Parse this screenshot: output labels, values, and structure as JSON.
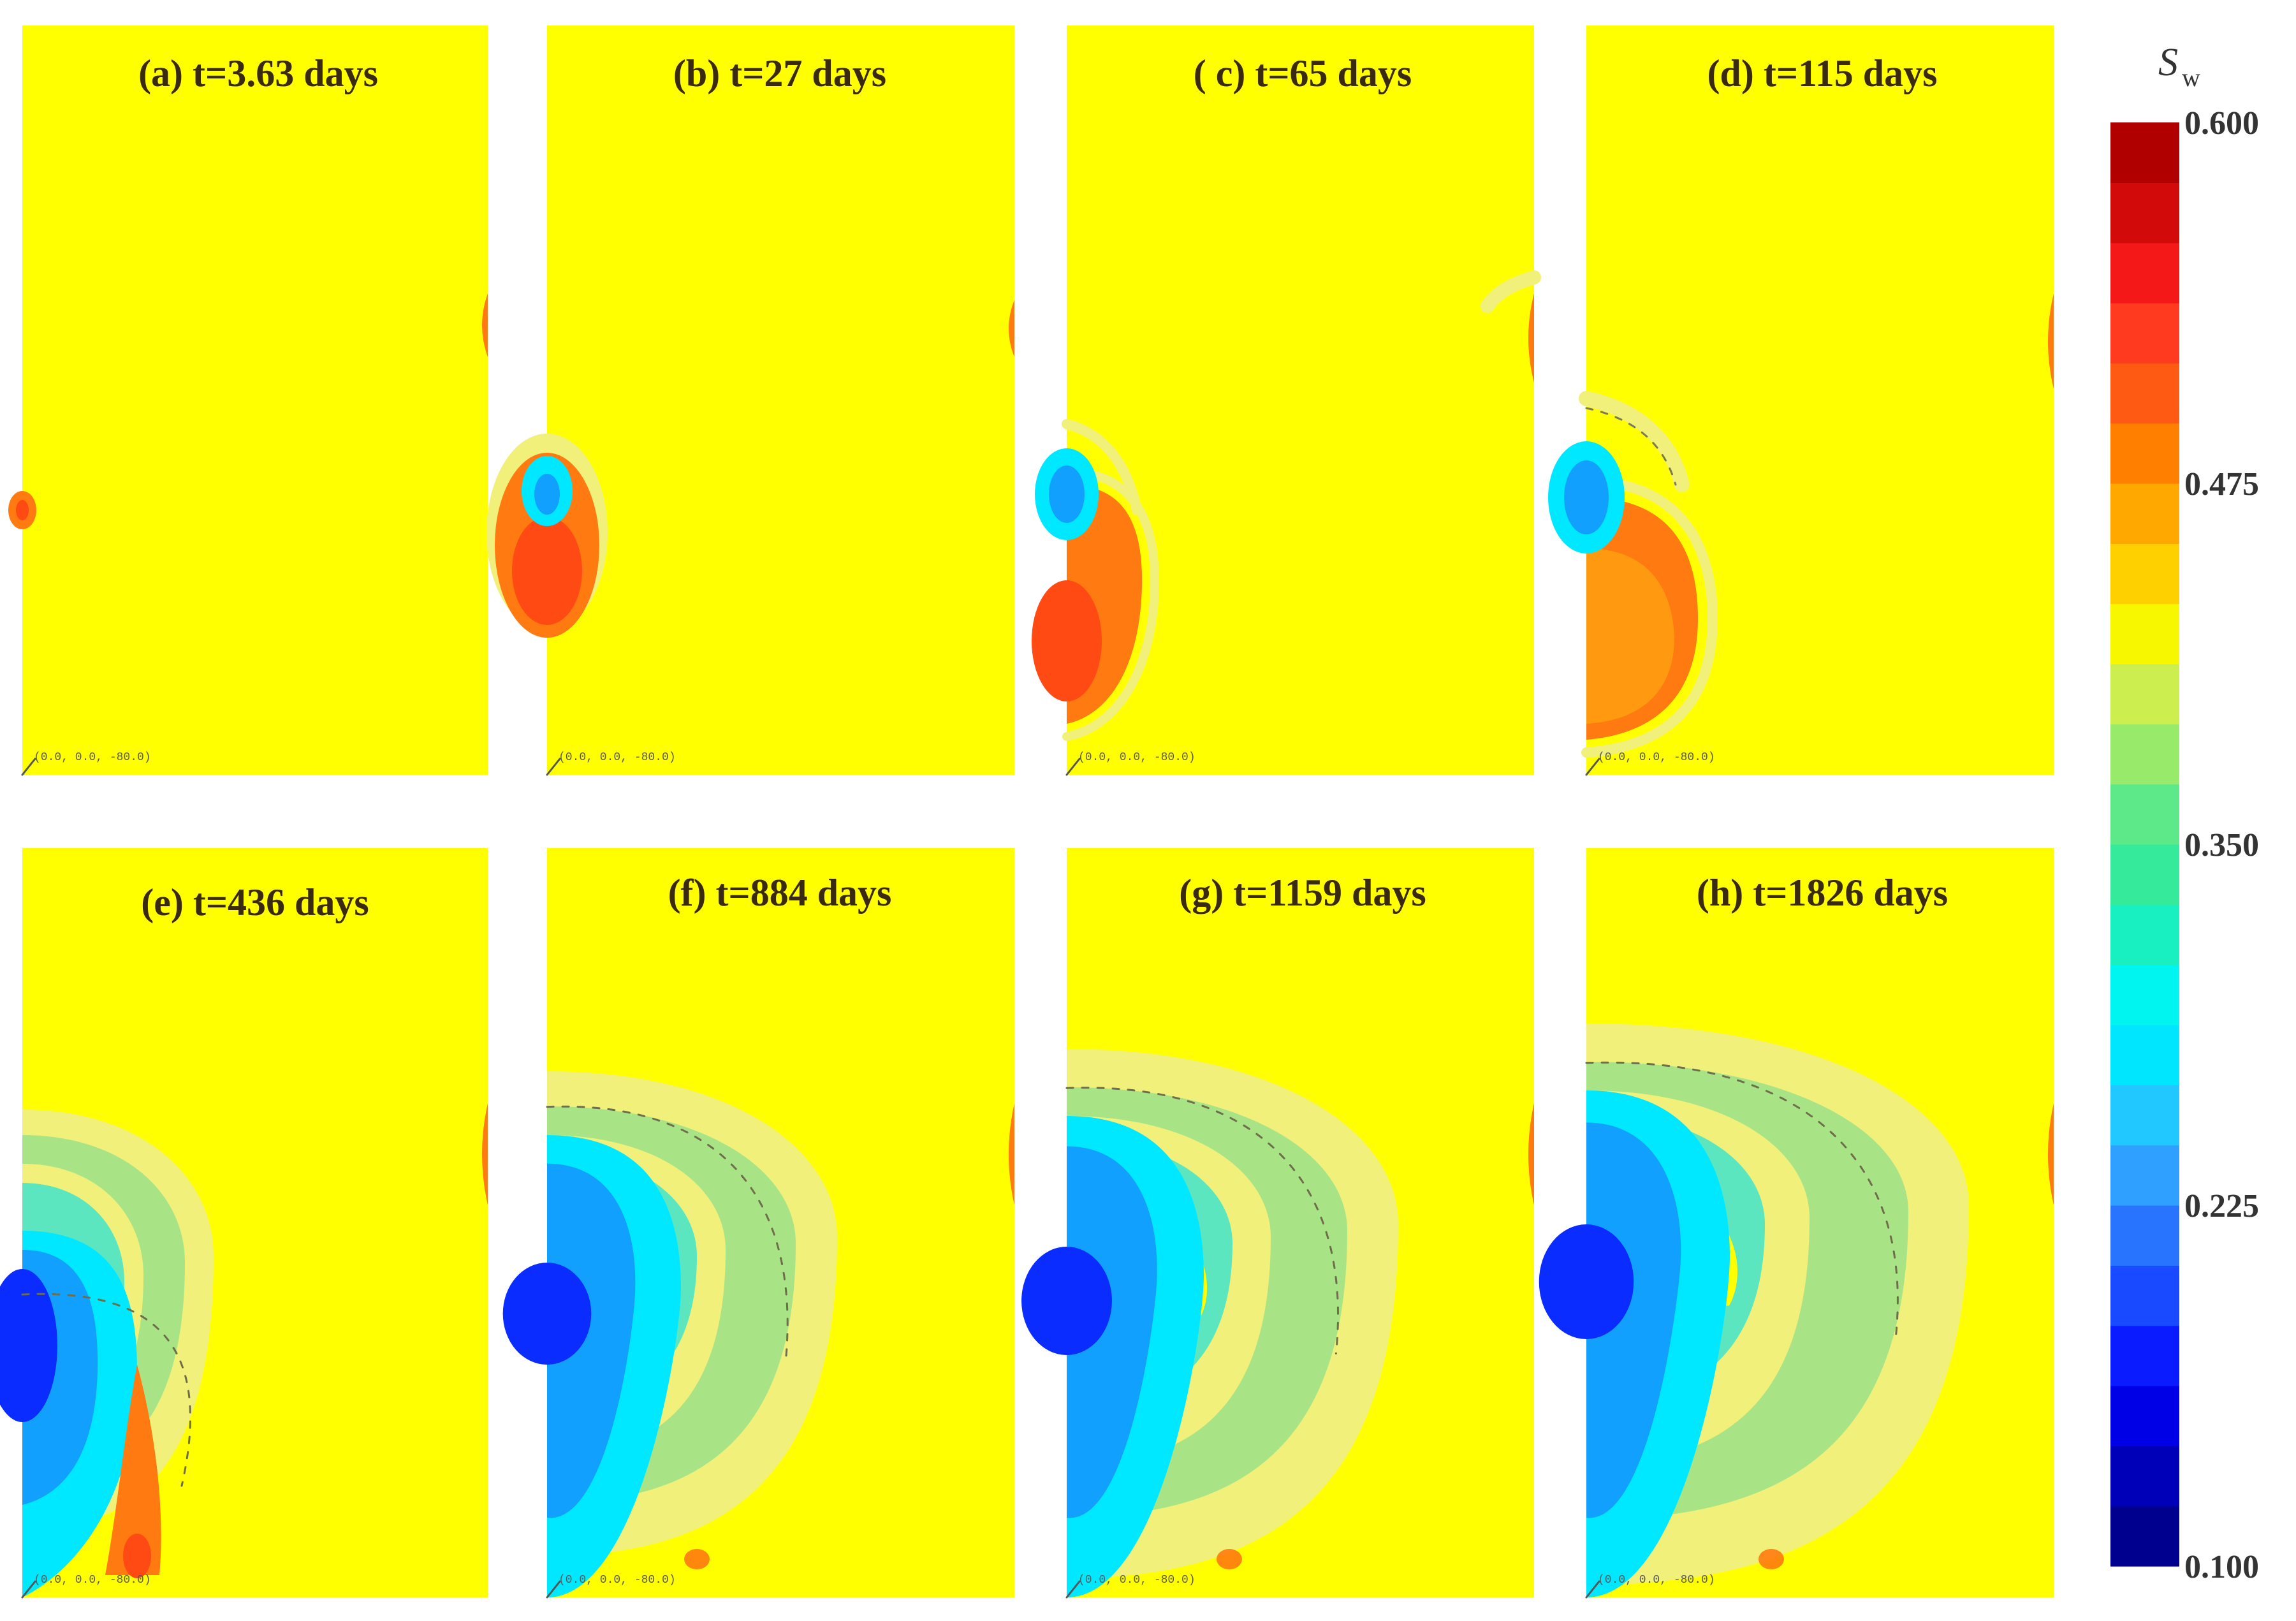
{
  "chart_data": {
    "type": "heatmap",
    "description_var": "water saturation contour snapshots",
    "colorbar": {
      "title": "S",
      "title_sub": "w",
      "min": 0.1,
      "max": 0.6,
      "levels": 24,
      "ticks": [
        "0.600",
        "0.475",
        "0.350",
        "0.225",
        "0.100"
      ],
      "tick_values": [
        0.6,
        0.475,
        0.35,
        0.225,
        0.1
      ],
      "colors": [
        "#00008f",
        "#0000b8",
        "#0000e6",
        "#0a1cff",
        "#1a4aff",
        "#2874ff",
        "#2fa0ff",
        "#20c8ff",
        "#00e6ff",
        "#00f5f0",
        "#19f0c2",
        "#35ea9a",
        "#5de88a",
        "#98ea6a",
        "#ccee4e",
        "#f7f700",
        "#ffd000",
        "#ffa800",
        "#ff8000",
        "#ff5a14",
        "#ff3a1e",
        "#f41818",
        "#d20a0a",
        "#b00000"
      ]
    },
    "origin_label": "(0.0, 0.0, -80.0)",
    "background_saturation": 0.42,
    "panels": [
      {
        "id": "a",
        "label": "(a) t=3.63 days",
        "time_days": 3.63
      },
      {
        "id": "b",
        "label": "(b) t=27 days",
        "time_days": 27
      },
      {
        "id": "c",
        "label": "( c) t=65 days",
        "time_days": 65
      },
      {
        "id": "d",
        "label": "(d) t=115 days",
        "time_days": 115
      },
      {
        "id": "e",
        "label": "(e) t=436 days",
        "time_days": 436
      },
      {
        "id": "f",
        "label": "(f) t=884 days",
        "time_days": 884
      },
      {
        "id": "g",
        "label": "(g) t=1159 days",
        "time_days": 1159
      },
      {
        "id": "h",
        "label": "(h) t=1826 days",
        "time_days": 1826
      }
    ],
    "colors": {
      "background_yellow": "#ffff00",
      "light_front": "#f0f07a",
      "green_band": "#a8e486",
      "teal_band": "#5ce6c0",
      "cyan": "#00e8ff",
      "mid_blue": "#12a0ff",
      "deep_blue": "#0a2cff",
      "orange": "#ff7a10",
      "red": "#ff4a14"
    }
  }
}
